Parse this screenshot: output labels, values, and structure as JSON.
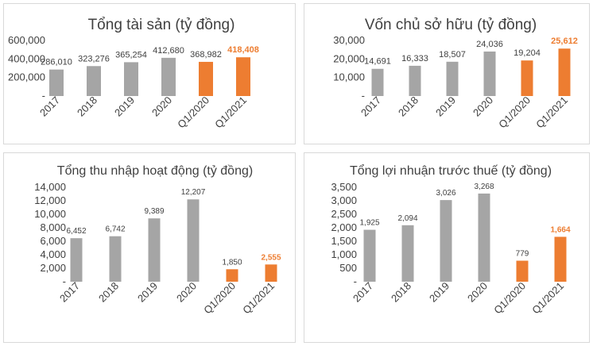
{
  "chart_data": [
    {
      "type": "bar",
      "title": "Tổng tài sản (tỷ đồng)",
      "categories": [
        "2017",
        "2018",
        "2019",
        "2020",
        "Q1/2020",
        "Q1/2021"
      ],
      "values": [
        286010,
        323276,
        365254,
        412680,
        368982,
        418408
      ],
      "value_labels": [
        "286,010",
        "323,276",
        "365,254",
        "412,680",
        "368,982",
        "418,408"
      ],
      "highlight": [
        false,
        false,
        false,
        false,
        true,
        true
      ],
      "highlight_label_bold": [
        false,
        false,
        false,
        false,
        false,
        true
      ],
      "ylim": [
        0,
        600000
      ],
      "yticks": [
        0,
        200000,
        400000,
        600000
      ],
      "ytick_labels": [
        "-",
        "200,000",
        "400,000",
        "600,000"
      ],
      "grid": false,
      "legend": "none"
    },
    {
      "type": "bar",
      "title": "Vốn chủ sở hữu (tỷ đồng)",
      "categories": [
        "2017",
        "2018",
        "2019",
        "2020",
        "Q1/2020",
        "Q1/2021"
      ],
      "values": [
        14691,
        16333,
        18507,
        24036,
        19204,
        25612
      ],
      "value_labels": [
        "14,691",
        "16,333",
        "18,507",
        "24,036",
        "19,204",
        "25,612"
      ],
      "highlight": [
        false,
        false,
        false,
        false,
        true,
        true
      ],
      "highlight_label_bold": [
        false,
        false,
        false,
        false,
        false,
        true
      ],
      "ylim": [
        0,
        30000
      ],
      "yticks": [
        0,
        10000,
        20000,
        30000
      ],
      "ytick_labels": [
        "-",
        "10,000",
        "20,000",
        "30,000"
      ],
      "grid": false,
      "legend": "none"
    },
    {
      "type": "bar",
      "title": "Tổng thu nhập hoạt động (tỷ đồng)",
      "categories": [
        "2017",
        "2018",
        "2019",
        "2020",
        "Q1/2020",
        "Q1/2021"
      ],
      "values": [
        6452,
        6742,
        9389,
        12207,
        1850,
        2555
      ],
      "value_labels": [
        "6,452",
        "6,742",
        "9,389",
        "12,207",
        "1,850",
        "2,555"
      ],
      "highlight": [
        false,
        false,
        false,
        false,
        true,
        true
      ],
      "highlight_label_bold": [
        false,
        false,
        false,
        false,
        false,
        true
      ],
      "ylim": [
        0,
        14000
      ],
      "yticks": [
        0,
        2000,
        4000,
        6000,
        8000,
        10000,
        12000,
        14000
      ],
      "ytick_labels": [
        "-",
        "2,000",
        "4,000",
        "6,000",
        "8,000",
        "10,000",
        "12,000",
        "14,000"
      ],
      "grid": false,
      "legend": "none"
    },
    {
      "type": "bar",
      "title": "Tổng lợi nhuận trước thuế (tỷ đồng)",
      "categories": [
        "2017",
        "2018",
        "2019",
        "2020",
        "Q1/2020",
        "Q1/2021"
      ],
      "values": [
        1925,
        2094,
        3026,
        3268,
        779,
        1664
      ],
      "value_labels": [
        "1,925",
        "2,094",
        "3,026",
        "3,268",
        "779",
        "1,664"
      ],
      "highlight": [
        false,
        false,
        false,
        false,
        true,
        true
      ],
      "highlight_label_bold": [
        false,
        false,
        false,
        false,
        false,
        true
      ],
      "ylim": [
        0,
        3500
      ],
      "yticks": [
        0,
        500,
        1000,
        1500,
        2000,
        2500,
        3000,
        3500
      ],
      "ytick_labels": [
        "-",
        "500",
        "1,000",
        "1,500",
        "2,000",
        "2,500",
        "3,000",
        "3,500"
      ],
      "grid": false,
      "legend": "none"
    }
  ],
  "colors": {
    "bar_default": "#a5a5a5",
    "bar_highlight": "#ed7d31",
    "text": "#404040",
    "label_highlight": "#ed7d31"
  }
}
